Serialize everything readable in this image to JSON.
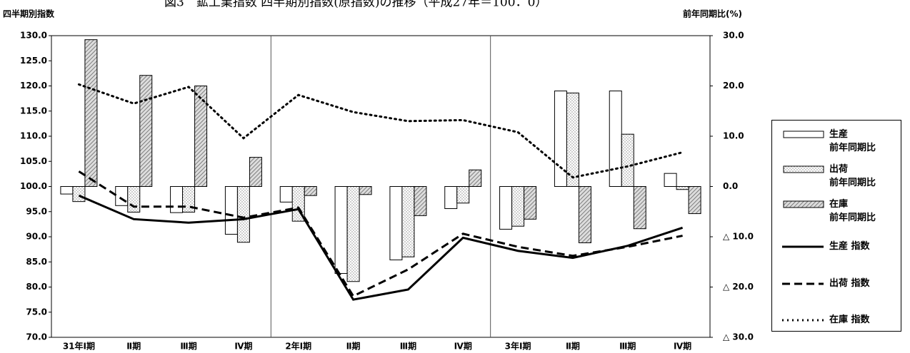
{
  "chart_data": {
    "type": "bar-line",
    "title": "図3　鉱工業指数 四半期別指数(原指数)の推移（平成27年＝100．0）",
    "y_label": "四半期別指数",
    "y2_label": "前年同期比(%)",
    "categories": [
      "31年Ⅰ期",
      "Ⅱ期",
      "Ⅲ期",
      "Ⅳ期",
      "2年Ⅰ期",
      "Ⅱ期",
      "Ⅲ期",
      "Ⅳ期",
      "3年Ⅰ期",
      "Ⅱ期",
      "Ⅲ期",
      "Ⅳ期"
    ],
    "ylim": [
      70,
      130
    ],
    "yticks": [
      {
        "value": 70,
        "label": "70.0"
      },
      {
        "value": 75,
        "label": "75.0"
      },
      {
        "value": 80,
        "label": "80.0"
      },
      {
        "value": 85,
        "label": "85.0"
      },
      {
        "value": 90,
        "label": "90.0"
      },
      {
        "value": 95,
        "label": "95.0"
      },
      {
        "value": 100,
        "label": "100.0"
      },
      {
        "value": 105,
        "label": "105.0"
      },
      {
        "value": 110,
        "label": "110.0"
      },
      {
        "value": 115,
        "label": "115.0"
      },
      {
        "value": 120,
        "label": "120.0"
      },
      {
        "value": 125,
        "label": "125.0"
      },
      {
        "value": 130,
        "label": "130.0"
      }
    ],
    "y2lim": [
      -30,
      30
    ],
    "y2ticks": [
      {
        "value": -30,
        "label": "△ 30.0"
      },
      {
        "value": -20,
        "label": "△ 20.0"
      },
      {
        "value": -10,
        "label": "△ 10.0"
      },
      {
        "value": 0,
        "label": "0.0"
      },
      {
        "value": 10,
        "label": "10.0"
      },
      {
        "value": 20,
        "label": "20.0"
      },
      {
        "value": 30,
        "label": "30.0"
      }
    ],
    "series": [
      {
        "name": "生産\n前年同期比",
        "kind": "bar",
        "axis": "y2",
        "color": "#000000",
        "fill": "plain",
        "values": [
          -1.5,
          -3.8,
          -5.2,
          -9.5,
          -3.1,
          -17.3,
          -14.6,
          -4.4,
          -8.5,
          19.0,
          19.0,
          2.6
        ]
      },
      {
        "name": "出荷\n前年同期比",
        "kind": "bar",
        "axis": "y2",
        "color": "#000000",
        "fill": "dots",
        "values": [
          -3.0,
          -5.1,
          -5.1,
          -11.1,
          -6.9,
          -18.9,
          -14.0,
          -3.3,
          -7.9,
          18.6,
          10.4,
          -0.6
        ]
      },
      {
        "name": "在庫\n前年同期比",
        "kind": "bar",
        "axis": "y2",
        "color": "#000000",
        "fill": "hatch",
        "values": [
          29.2,
          22.1,
          20.0,
          5.8,
          -1.8,
          -1.6,
          -5.8,
          3.3,
          -6.5,
          -11.2,
          -8.4,
          -5.4
        ]
      },
      {
        "name": "生産 指数",
        "kind": "line",
        "color": "#000000",
        "dash": "solid",
        "values": [
          98.2,
          93.5,
          92.8,
          93.5,
          95.5,
          77.5,
          79.5,
          89.8,
          87.2,
          85.8,
          88.2,
          91.8
        ]
      },
      {
        "name": "出荷 指数",
        "kind": "line",
        "color": "#000000",
        "dash": "dashed",
        "values": [
          103.0,
          96.0,
          96.0,
          93.8,
          95.8,
          78.2,
          83.5,
          90.6,
          88.0,
          86.2,
          88.0,
          90.2
        ]
      },
      {
        "name": "在庫 指数",
        "kind": "line",
        "color": "#000000",
        "dash": "dotted",
        "values": [
          120.3,
          116.5,
          119.8,
          109.6,
          118.2,
          114.8,
          113.0,
          113.2,
          110.8,
          101.8,
          104.0,
          106.8
        ]
      }
    ]
  }
}
